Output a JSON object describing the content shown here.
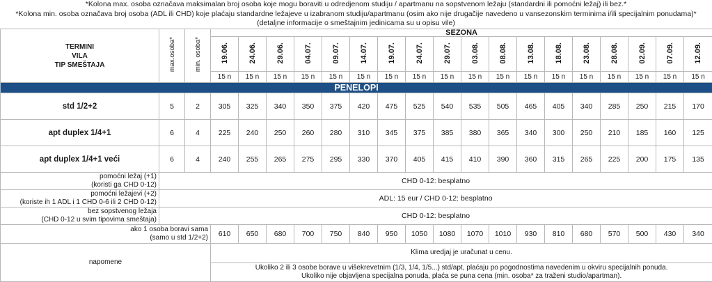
{
  "notes": [
    "*Kolona max. osoba označava maksimalan broj osoba koje mogu boraviti u odredjenom studiju / apartmanu na sopstvenom ležaju (standardni ili pomoćni ležaj) ili bez.*",
    "*Kolona min. osoba označava broj osoba (ADL ili CHD) koje plaćaju standardne ležajeve u izabranom studiju/apartmanu (osim ako nije drugačije navedeno u vansezonskim terminima i/ili specijalnim ponudama)*",
    "(detaljne informacije o smeštajnim jedinicama su u opisu vile)"
  ],
  "header": {
    "termini": "TERMINI",
    "vila": "VILA",
    "tip": "TIP SMEŠTAJA",
    "max_osoba": "max.osoba*",
    "min_osoba": "min. osoba*",
    "sezona": "SEZONA",
    "dates": [
      "19.06.",
      "24.06.",
      "29.06.",
      "04.07.",
      "09.07.",
      "14.07.",
      "19.07.",
      "24.07.",
      "29.07.",
      "03.08.",
      "08.08.",
      "13.08.",
      "18.08.",
      "23.08.",
      "28.08.",
      "02.09.",
      "07.09.",
      "12.09."
    ],
    "nights": [
      "15 n",
      "15 n",
      "15 n",
      "15 n",
      "15 n",
      "15 n",
      "15 n",
      "15 n",
      "15 n",
      "15 n",
      "15 n",
      "15 n",
      "15 n",
      "15 n",
      "15 n",
      "15 n",
      "15 n",
      "15 n"
    ]
  },
  "villa": "PENELOPI",
  "units": [
    {
      "name": "std 1/2+2",
      "max": "5",
      "min": "2",
      "prices": [
        "305",
        "325",
        "340",
        "350",
        "375",
        "420",
        "475",
        "525",
        "540",
        "535",
        "505",
        "465",
        "405",
        "340",
        "285",
        "250",
        "215",
        "170"
      ]
    },
    {
      "name": "apt duplex 1/4+1",
      "max": "6",
      "min": "4",
      "prices": [
        "225",
        "240",
        "250",
        "260",
        "280",
        "310",
        "345",
        "375",
        "385",
        "380",
        "365",
        "340",
        "300",
        "250",
        "210",
        "185",
        "160",
        "125"
      ]
    },
    {
      "name": "apt duplex 1/4+1 veći",
      "max": "6",
      "min": "4",
      "prices": [
        "240",
        "255",
        "265",
        "275",
        "295",
        "330",
        "370",
        "405",
        "415",
        "410",
        "390",
        "360",
        "315",
        "265",
        "225",
        "200",
        "175",
        "135"
      ]
    }
  ],
  "extras": [
    {
      "label1": "pomoćni ležaj (+1)",
      "label2": "(koristi ga CHD 0-12)",
      "value": "CHD 0-12: besplatno"
    },
    {
      "label1": "pomoćni ležajevi (+2)",
      "label2": "(koriste ih 1 ADL i 1 CHD 0-6 ili 2 CHD 0-12)",
      "value": "ADL: 15 eur / CHD 0-12: besplatno"
    },
    {
      "label1": "bez sopstvenog ležaja",
      "label2": "(CHD 0-12 u svim tipovima smeštaja)",
      "value": "CHD 0-12: besplatno"
    }
  ],
  "single": {
    "label1": "ako 1 osoba boravi sama",
    "label2": "(samo u std 1/2+2)",
    "prices": [
      "610",
      "650",
      "680",
      "700",
      "750",
      "840",
      "950",
      "1050",
      "1080",
      "1070",
      "1010",
      "930",
      "810",
      "680",
      "570",
      "500",
      "430",
      "340"
    ]
  },
  "remarks": {
    "label": "napomene",
    "line1": "Klima uredjaj je uračunat u cenu.",
    "line2": "Ukoliko 2 ili 3 osobe borave u višekrevetnim (1/3, 1/4, 1/5...) std/apt, plaćaju po pogodnostima navedenim u okviru specijalnih ponuda.",
    "line3": "Ukoliko nije objavljena specijalna ponuda, plaća se puna cena (min. osoba* za traženi studio/apartman)."
  },
  "colors": {
    "villa_bar": "#1d4f86",
    "border": "#b8b8b8"
  }
}
